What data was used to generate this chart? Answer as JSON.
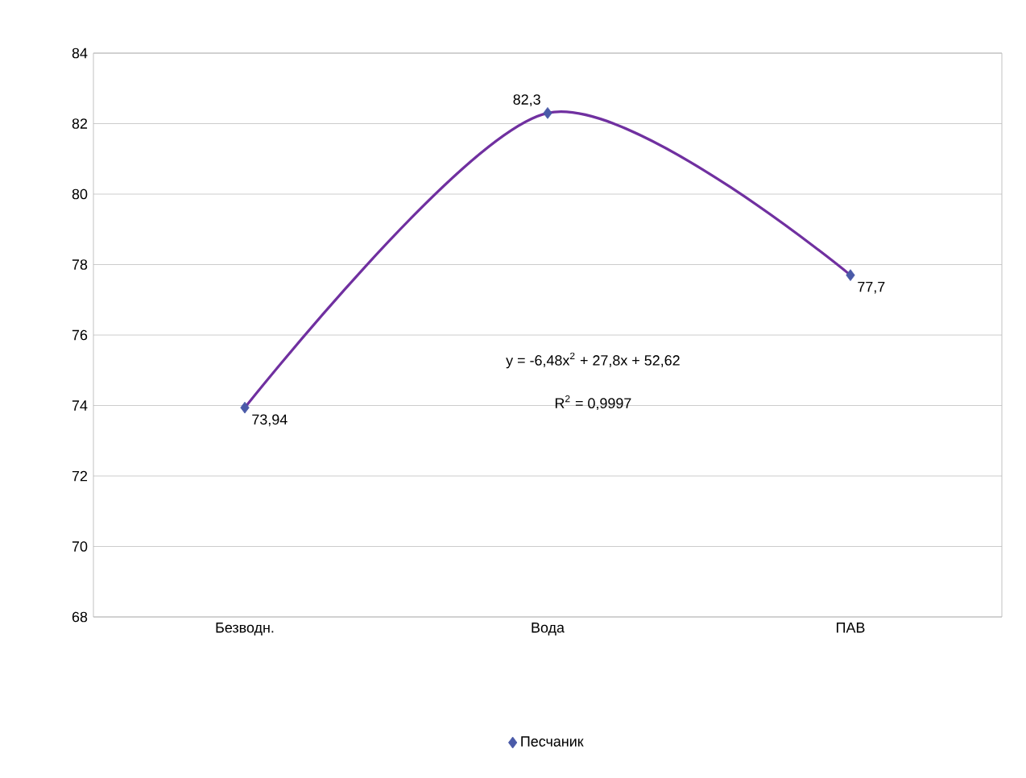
{
  "chart_data": {
    "type": "scatter",
    "categories": [
      "Безводн.",
      "Вода",
      "ПАВ"
    ],
    "series": [
      {
        "name": "Песчаник",
        "color": "#4a5aa8",
        "marker": "diamond",
        "values": [
          73.94,
          82.3,
          77.7
        ],
        "value_labels": [
          "73,94",
          "82,3",
          "77,7"
        ]
      },
      {
        "type": "line",
        "color": "#7030a0",
        "marker": "none",
        "line_style": "solid",
        "values": [
          73.94,
          82.3,
          77.7
        ]
      }
    ],
    "ylim": [
      68,
      84
    ],
    "yticks": [
      68,
      70,
      72,
      74,
      76,
      78,
      80,
      82,
      84
    ],
    "grid": "y",
    "legend": "bottom",
    "annotations": [
      "y = -6,48x$^{2}$ + 27,8x + 52,62",
      "R$^{2}$ = 0,9997"
    ]
  }
}
